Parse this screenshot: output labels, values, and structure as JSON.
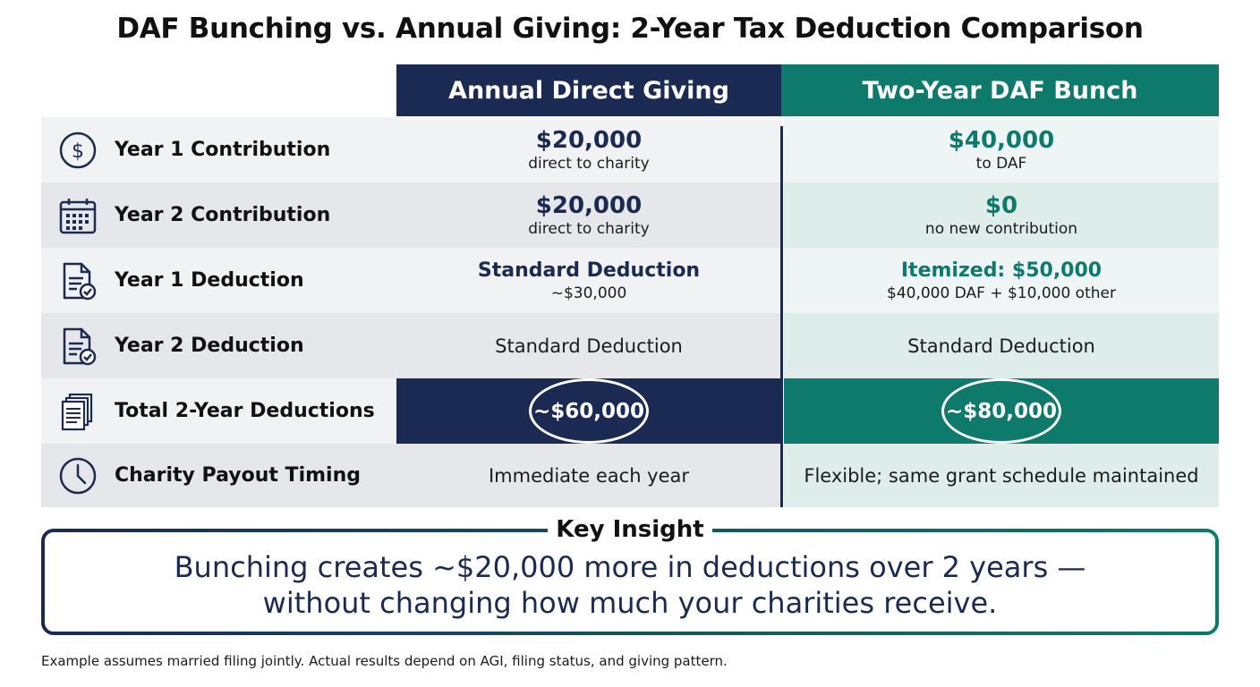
{
  "title": "DAF Bunching vs. Annual Giving: 2-Year Tax Deduction Comparison",
  "columns": {
    "annual": "Annual Direct Giving",
    "daf": "Two-Year DAF Bunch"
  },
  "rows": [
    {
      "label": "Year 1 Contribution",
      "icon": "dollar-circle-icon",
      "annual": {
        "main": "$20,000",
        "sub": "direct to charity"
      },
      "daf": {
        "main": "$40,000",
        "sub": "to DAF"
      }
    },
    {
      "label": "Year 2 Contribution",
      "icon": "calendar-icon",
      "annual": {
        "main": "$20,000",
        "sub": "direct to charity"
      },
      "daf": {
        "main": "$0",
        "sub": "no new contribution"
      }
    },
    {
      "label": "Year 1 Deduction",
      "icon": "document-check-icon",
      "annual": {
        "main": "Standard Deduction",
        "sub": "~$30,000"
      },
      "daf": {
        "main": "Itemized: $50,000",
        "sub": "$40,000 DAF + $10,000 other"
      }
    },
    {
      "label": "Year 2 Deduction",
      "icon": "document-check-icon",
      "annual": {
        "main": "Standard Deduction"
      },
      "daf": {
        "main": "Standard Deduction"
      }
    },
    {
      "label": "Total 2-Year Deductions",
      "icon": "documents-stack-icon",
      "annual": {
        "main": "~$60,000"
      },
      "daf": {
        "main": "~$80,000"
      }
    },
    {
      "label": "Charity Payout Timing",
      "icon": "clock-icon",
      "annual": {
        "main": "Immediate each year"
      },
      "daf": {
        "main": "Flexible; same grant schedule maintained"
      }
    }
  ],
  "insight": {
    "label": "Key Insight",
    "line1": "Bunching creates ~$20,000 more in deductions over 2 years —",
    "line2": "without changing how much your charities receive."
  },
  "footnote": "Example assumes married filing jointly. Actual results depend on AGI, filing status, and giving pattern.",
  "colors": {
    "navy": "#1b2a52",
    "teal": "#0d7a6c"
  }
}
